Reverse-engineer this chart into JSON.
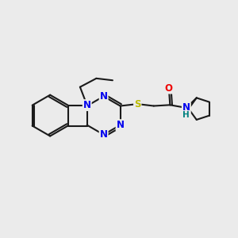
{
  "bg_color": "#ebebeb",
  "bond_color": "#1a1a1a",
  "bond_width": 1.5,
  "atom_colors": {
    "N": "#0000ee",
    "O": "#ee0000",
    "S": "#bbbb00",
    "NH": "#008080",
    "C": "#1a1a1a"
  },
  "font_size": 8.5,
  "xlim": [
    0,
    10
  ],
  "ylim": [
    0,
    10
  ]
}
